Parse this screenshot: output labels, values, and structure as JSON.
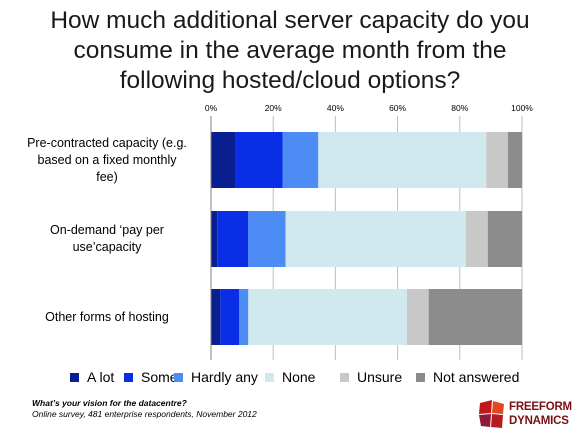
{
  "title_lines": [
    "How much additional server capacity do you",
    "consume in the average month from the",
    "following hosted/cloud options?"
  ],
  "chart_data": {
    "type": "bar",
    "orientation": "horizontal",
    "stacked": true,
    "percent": true,
    "title": "How much additional server capacity do you consume in the average month from the following hosted/cloud options?",
    "categories": [
      [
        "Pre-contracted capacity (e.g.",
        "based on a fixed monthly",
        "fee)"
      ],
      [
        "On-demand ‘pay per",
        "use’capacity"
      ],
      [
        "Other forms of hosting"
      ]
    ],
    "xlim": [
      0,
      100
    ],
    "xticks": [
      "0%",
      "20%",
      "40%",
      "60%",
      "80%",
      "100%"
    ],
    "grid": true,
    "legend_position": "bottom",
    "series": [
      {
        "name": "A lot",
        "color": "#0a1f8f",
        "values": [
          8,
          2,
          3
        ]
      },
      {
        "name": "Some",
        "color": "#0a2ee6",
        "values": [
          15,
          10,
          6
        ]
      },
      {
        "name": "Hardly any",
        "color": "#4d8cf5",
        "values": [
          11.5,
          12,
          3
        ]
      },
      {
        "name": "None",
        "color": "#cfe9ef",
        "values": [
          54,
          58,
          51
        ]
      },
      {
        "name": "Unsure",
        "color": "#c8c8c8",
        "values": [
          7,
          7,
          7
        ]
      },
      {
        "name": "Not answered",
        "color": "#8c8c8c",
        "values": [
          4.5,
          11,
          30
        ]
      }
    ]
  },
  "footer": {
    "line1": "What’s your vision for the datacentre?",
    "line2": "Online survey, 481 enterprise respondents, November 2012"
  },
  "logo": {
    "line1": "FREEFORM",
    "line2": "DYNAMICS",
    "color": "#7a1015"
  }
}
